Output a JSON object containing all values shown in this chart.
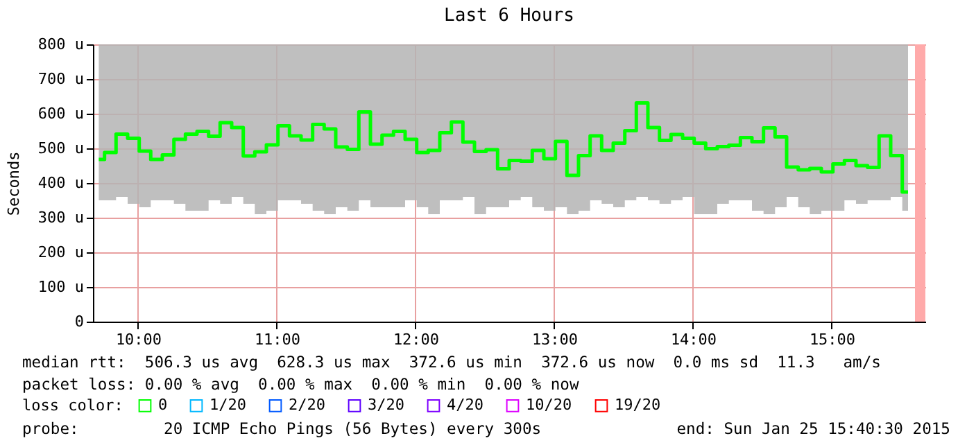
{
  "chart_data": {
    "type": "step",
    "title": "Last 6 Hours",
    "ylabel": "Seconds",
    "legend_title": "loss color:",
    "x": [
      9.717,
      9.8,
      9.883,
      9.967,
      10.05,
      10.133,
      10.217,
      10.3,
      10.383,
      10.467,
      10.55,
      10.633,
      10.717,
      10.8,
      10.883,
      10.967,
      11.05,
      11.133,
      11.217,
      11.3,
      11.383,
      11.467,
      11.55,
      11.633,
      11.717,
      11.8,
      11.883,
      11.967,
      12.05,
      12.133,
      12.217,
      12.3,
      12.383,
      12.467,
      12.55,
      12.633,
      12.717,
      12.8,
      12.883,
      12.967,
      13.05,
      13.133,
      13.217,
      13.3,
      13.383,
      13.467,
      13.55,
      13.633,
      13.717,
      13.8,
      13.883,
      13.967,
      14.05,
      14.133,
      14.217,
      14.3,
      14.383,
      14.467,
      14.55,
      14.633,
      14.717,
      14.8,
      14.883,
      14.967,
      15.05,
      15.133,
      15.217,
      15.3,
      15.383,
      15.467,
      15.55
    ],
    "series": [
      {
        "name": "0",
        "color": "#00ff00",
        "values": [
          468,
          488,
          541,
          529,
          492,
          468,
          481,
          526,
          541,
          549,
          535,
          574,
          560,
          478,
          490,
          510,
          565,
          536,
          524,
          569,
          556,
          504,
          497,
          605,
          512,
          538,
          549,
          526,
          488,
          494,
          545,
          576,
          518,
          491,
          496,
          441,
          465,
          463,
          494,
          470,
          520,
          422,
          479,
          536,
          494,
          515,
          551,
          631,
          560,
          523,
          540,
          529,
          515,
          499,
          505,
          509,
          531,
          519,
          559,
          533,
          446,
          438,
          442,
          432,
          455,
          465,
          450,
          445,
          536,
          479,
          374
        ],
        "lower": [
          350,
          350,
          360,
          340,
          330,
          350,
          350,
          340,
          320,
          320,
          350,
          340,
          360,
          340,
          310,
          320,
          350,
          350,
          340,
          320,
          310,
          330,
          320,
          350,
          330,
          330,
          330,
          350,
          330,
          310,
          350,
          350,
          360,
          310,
          330,
          330,
          350,
          360,
          330,
          320,
          330,
          310,
          320,
          350,
          340,
          330,
          350,
          360,
          350,
          340,
          350,
          360,
          310,
          310,
          340,
          350,
          350,
          320,
          310,
          330,
          360,
          330,
          310,
          320,
          320,
          350,
          340,
          350,
          350,
          360,
          320
        ],
        "upper": [
          800,
          800,
          800,
          800,
          800,
          800,
          800,
          800,
          800,
          800,
          800,
          800,
          800,
          800,
          800,
          800,
          800,
          800,
          800,
          800,
          800,
          800,
          800,
          800,
          800,
          800,
          800,
          800,
          800,
          800,
          800,
          800,
          800,
          800,
          800,
          800,
          800,
          800,
          800,
          800,
          800,
          800,
          800,
          800,
          800,
          800,
          800,
          800,
          800,
          800,
          800,
          800,
          800,
          800,
          800,
          800,
          800,
          800,
          800,
          800,
          800,
          800,
          800,
          800,
          800,
          800,
          800,
          800,
          800,
          800,
          800
        ]
      },
      {
        "name": "1/20",
        "color": "#00b8ff",
        "values": [
          null,
          null,
          null,
          null,
          null,
          null,
          null,
          null,
          null,
          null,
          null,
          null,
          null,
          null,
          null,
          null,
          null,
          null,
          null,
          null,
          null,
          null,
          null,
          null,
          null,
          null,
          null,
          null,
          null,
          null,
          null,
          null,
          null,
          null,
          null,
          null,
          null,
          null,
          null,
          null,
          null,
          null,
          null,
          null,
          null,
          null,
          null,
          null,
          null,
          null,
          null,
          null,
          null,
          null,
          null,
          null,
          null,
          null,
          null,
          null,
          null,
          null,
          null,
          null,
          null,
          null,
          null,
          null,
          null,
          null,
          null
        ]
      },
      {
        "name": "2/20",
        "color": "#0059ff",
        "values": [
          null,
          null,
          null,
          null,
          null,
          null,
          null,
          null,
          null,
          null,
          null,
          null,
          null,
          null,
          null,
          null,
          null,
          null,
          null,
          null,
          null,
          null,
          null,
          null,
          null,
          null,
          null,
          null,
          null,
          null,
          null,
          null,
          null,
          null,
          null,
          null,
          null,
          null,
          null,
          null,
          null,
          null,
          null,
          null,
          null,
          null,
          null,
          null,
          null,
          null,
          null,
          null,
          null,
          null,
          null,
          null,
          null,
          null,
          null,
          null,
          null,
          null,
          null,
          null,
          null,
          null,
          null,
          null,
          null,
          null,
          null
        ]
      },
      {
        "name": "3/20",
        "color": "#5e00ff",
        "values": [
          null,
          null,
          null,
          null,
          null,
          null,
          null,
          null,
          null,
          null,
          null,
          null,
          null,
          null,
          null,
          null,
          null,
          null,
          null,
          null,
          null,
          null,
          null,
          null,
          null,
          null,
          null,
          null,
          null,
          null,
          null,
          null,
          null,
          null,
          null,
          null,
          null,
          null,
          null,
          null,
          null,
          null,
          null,
          null,
          null,
          null,
          null,
          null,
          null,
          null,
          null,
          null,
          null,
          null,
          null,
          null,
          null,
          null,
          null,
          null,
          null,
          null,
          null,
          null,
          null,
          null,
          null,
          null,
          null,
          null,
          null
        ]
      },
      {
        "name": "4/20",
        "color": "#7e00ff",
        "values": [
          null,
          null,
          null,
          null,
          null,
          null,
          null,
          null,
          null,
          null,
          null,
          null,
          null,
          null,
          null,
          null,
          null,
          null,
          null,
          null,
          null,
          null,
          null,
          null,
          null,
          null,
          null,
          null,
          null,
          null,
          null,
          null,
          null,
          null,
          null,
          null,
          null,
          null,
          null,
          null,
          null,
          null,
          null,
          null,
          null,
          null,
          null,
          null,
          null,
          null,
          null,
          null,
          null,
          null,
          null,
          null,
          null,
          null,
          null,
          null,
          null,
          null,
          null,
          null,
          null,
          null,
          null,
          null,
          null,
          null,
          null
        ]
      },
      {
        "name": "10/20",
        "color": "#dd00ff",
        "values": [
          null,
          null,
          null,
          null,
          null,
          null,
          null,
          null,
          null,
          null,
          null,
          null,
          null,
          null,
          null,
          null,
          null,
          null,
          null,
          null,
          null,
          null,
          null,
          null,
          null,
          null,
          null,
          null,
          null,
          null,
          null,
          null,
          null,
          null,
          null,
          null,
          null,
          null,
          null,
          null,
          null,
          null,
          null,
          null,
          null,
          null,
          null,
          null,
          null,
          null,
          null,
          null,
          null,
          null,
          null,
          null,
          null,
          null,
          null,
          null,
          null,
          null,
          null,
          null,
          null,
          null,
          null,
          null,
          null,
          null,
          null
        ]
      },
      {
        "name": "19/20",
        "color": "#ff0000",
        "values": [
          null,
          null,
          null,
          null,
          null,
          null,
          null,
          null,
          null,
          null,
          null,
          null,
          null,
          null,
          null,
          null,
          null,
          null,
          null,
          null,
          null,
          null,
          null,
          null,
          null,
          null,
          null,
          null,
          null,
          null,
          null,
          null,
          null,
          null,
          null,
          null,
          null,
          null,
          null,
          null,
          null,
          null,
          null,
          null,
          null,
          null,
          null,
          null,
          null,
          null,
          null,
          null,
          null,
          null,
          null,
          null,
          null,
          null,
          null,
          null,
          null,
          null,
          null,
          null,
          null,
          null,
          null,
          null,
          null,
          null,
          null
        ]
      }
    ],
    "xlim": [
      9.675,
      15.675
    ],
    "xticks": [
      {
        "value": 10,
        "label": "10:00"
      },
      {
        "value": 11,
        "label": "11:00"
      },
      {
        "value": 12,
        "label": "12:00"
      },
      {
        "value": 13,
        "label": "13:00"
      },
      {
        "value": 14,
        "label": "14:00"
      },
      {
        "value": 15,
        "label": "15:00"
      }
    ],
    "ylim": [
      0,
      800
    ],
    "yticks": [
      0,
      {
        "value": 100,
        "label": "100 u"
      },
      {
        "value": 200,
        "label": "200 u"
      },
      {
        "value": 300,
        "label": "300 u"
      },
      {
        "value": 400,
        "label": "400 u"
      },
      {
        "value": 500,
        "label": "500 u"
      },
      {
        "value": 600,
        "label": "600 u"
      },
      {
        "value": 700,
        "label": "700 u"
      },
      {
        "value": 800,
        "label": "800 u"
      }
    ],
    "bands": [
      {
        "axis": "x",
        "from": 15.6,
        "to": 15.675,
        "color": "#ffaaaa"
      }
    ],
    "grid": true,
    "legend": "bottom left",
    "annotations": [
      "median rtt:  506.3 us avg  628.3 us max  372.6 us min  372.6 us now  0.0 ms sd  11.3   am/s",
      "packet loss: 0.00 % avg  0.00 % max  0.00 % min  0.00 % now",
      "probe:         20 ICMP Echo Pings (56 Bytes) every 300s",
      "end: Sun Jan 25 15:40:30 2015"
    ]
  }
}
